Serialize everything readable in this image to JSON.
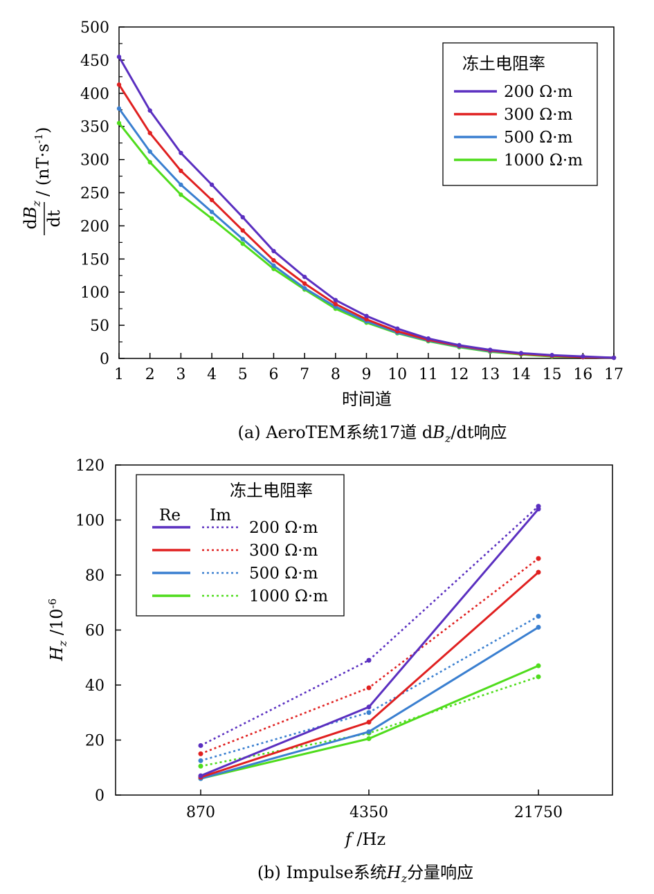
{
  "chart_data": [
    {
      "type": "line",
      "caption_prefix": "(a)  AeroTEM系统17道 ",
      "caption_var": "d",
      "caption_var_b": "B",
      "caption_sub": "z",
      "caption_rest": "/dt",
      "caption_suffix": "响应",
      "xlabel": "时间道",
      "ylabel_num_d": "d",
      "ylabel_num_var": "B",
      "ylabel_num_sub": "z",
      "ylabel_den": "dt",
      "ylabel_unit": "/ (nT·s",
      "ylabel_unit_exp": "-1",
      "ylabel_unit_close": ")",
      "ylim": [
        0,
        500
      ],
      "y_ticks": [
        "0",
        "50",
        "100",
        "150",
        "200",
        "250",
        "300",
        "350",
        "400",
        "450",
        "500"
      ],
      "x": [
        1,
        2,
        3,
        4,
        5,
        6,
        7,
        8,
        9,
        10,
        11,
        12,
        13,
        14,
        15,
        16,
        17
      ],
      "x_ticks": [
        "1",
        "2",
        "3",
        "4",
        "5",
        "6",
        "7",
        "8",
        "9",
        "10",
        "11",
        "12",
        "13",
        "14",
        "15",
        "16",
        "17"
      ],
      "legend_title": "冻土电阻率",
      "legend_position": "top-right",
      "series": [
        {
          "name": "200 Ω·m",
          "color": "#5a2fc0",
          "values": [
            455,
            374,
            310,
            262,
            213,
            162,
            123,
            88,
            64,
            45,
            30,
            20,
            13,
            8,
            5,
            3,
            1
          ]
        },
        {
          "name": "300 Ω·m",
          "color": "#e02020",
          "values": [
            413,
            340,
            283,
            239,
            193,
            148,
            113,
            82,
            59,
            41,
            28,
            19,
            12,
            7,
            4,
            2,
            1
          ]
        },
        {
          "name": "500 Ω·m",
          "color": "#3a7fd0",
          "values": [
            377,
            312,
            262,
            221,
            180,
            140,
            106,
            78,
            56,
            39,
            27,
            18,
            11,
            7,
            4,
            2,
            1
          ]
        },
        {
          "name": "1000 Ω·m",
          "color": "#4fdc1c",
          "values": [
            355,
            296,
            247,
            211,
            173,
            135,
            104,
            75,
            54,
            38,
            26,
            17,
            10,
            6,
            3,
            2,
            1
          ]
        }
      ]
    },
    {
      "type": "line",
      "caption_prefix": "(b) Impulse系统",
      "caption_var": "H",
      "caption_sub": "z",
      "caption_suffix": "分量响应",
      "xlabel_var": "f",
      "xlabel_rest": " /Hz",
      "ylabel_var": "H",
      "ylabel_sub": "z",
      "ylabel_rest": " /10",
      "ylabel_exp": "-6",
      "ylim": [
        0,
        120
      ],
      "y_ticks": [
        "0",
        "20",
        "40",
        "60",
        "80",
        "100",
        "120"
      ],
      "categories": [
        "870",
        "4350",
        "21750"
      ],
      "legend_title": "冻土电阻率",
      "legend_re": "Re",
      "legend_im": "Im",
      "legend_position": "top-left",
      "series": [
        {
          "name": "200 Ω·m",
          "color": "#5a2fc0",
          "re": [
            7,
            32,
            104
          ],
          "im": [
            18,
            49,
            105
          ]
        },
        {
          "name": "300 Ω·m",
          "color": "#e02020",
          "re": [
            6.5,
            26.5,
            81
          ],
          "im": [
            15,
            39,
            86
          ]
        },
        {
          "name": "500 Ω·m",
          "color": "#3a7fd0",
          "re": [
            6,
            23,
            61
          ],
          "im": [
            12.5,
            30,
            65
          ]
        },
        {
          "name": "1000 Ω·m",
          "color": "#4fdc1c",
          "re": [
            6,
            20.5,
            47
          ],
          "im": [
            10.5,
            22.5,
            43
          ]
        }
      ]
    }
  ]
}
